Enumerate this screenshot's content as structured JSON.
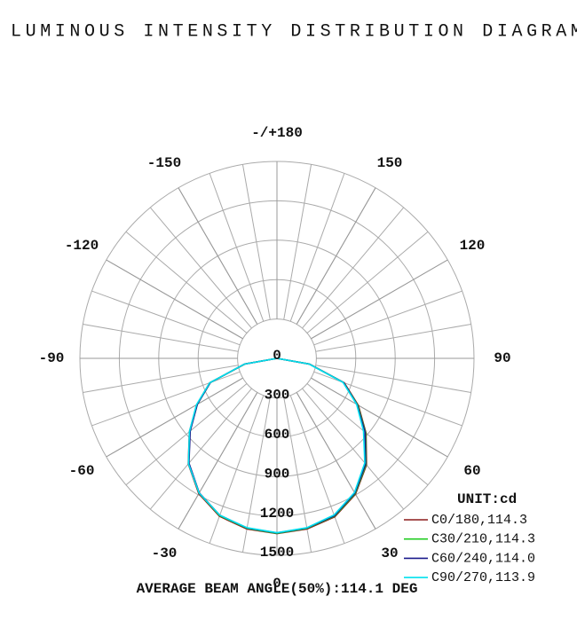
{
  "chart_data": {
    "type": "polar",
    "title": "LUMINOUS INTENSITY DISTRIBUTION DIAGRAM",
    "unit_label": "UNIT:cd",
    "footer": "AVERAGE BEAM ANGLE(50%):114.1 DEG",
    "x": [
      -90,
      -80,
      -70,
      -60,
      -50,
      -40,
      -30,
      -20,
      -10,
      0,
      10,
      20,
      30,
      40,
      50,
      60,
      70,
      80,
      90
    ],
    "rlim": [
      0,
      1500
    ],
    "rticks": [
      0,
      300,
      600,
      900,
      1200,
      1500
    ],
    "thetaticks": [
      {
        "value": 180,
        "label": "-/+180"
      },
      150,
      120,
      90,
      60,
      30,
      0,
      -30,
      -60,
      -90,
      -120,
      -150
    ],
    "grid": true,
    "legend": "lower right",
    "series": [
      {
        "name": "C0/180,114.3",
        "color": "#8b1a1a",
        "values": [
          0,
          250,
          545,
          705,
          870,
          1050,
          1190,
          1280,
          1320,
          1335,
          1320,
          1285,
          1195,
          1060,
          885,
          715,
          545,
          250,
          0
        ]
      },
      {
        "name": "C30/210,114.3",
        "color": "#22cc22",
        "values": [
          0,
          248,
          540,
          700,
          865,
          1045,
          1185,
          1275,
          1315,
          1333,
          1315,
          1280,
          1190,
          1055,
          880,
          710,
          540,
          250,
          0
        ]
      },
      {
        "name": "C60/240,114.0",
        "color": "#1a1a8b",
        "values": [
          0,
          250,
          540,
          700,
          862,
          1042,
          1183,
          1272,
          1312,
          1330,
          1312,
          1276,
          1186,
          1050,
          875,
          705,
          540,
          250,
          0
        ]
      },
      {
        "name": "C90/270,113.9",
        "color": "#00e0ee",
        "values": [
          0,
          252,
          545,
          708,
          870,
          1048,
          1185,
          1272,
          1310,
          1328,
          1310,
          1270,
          1180,
          1040,
          860,
          700,
          535,
          248,
          0
        ]
      }
    ]
  }
}
